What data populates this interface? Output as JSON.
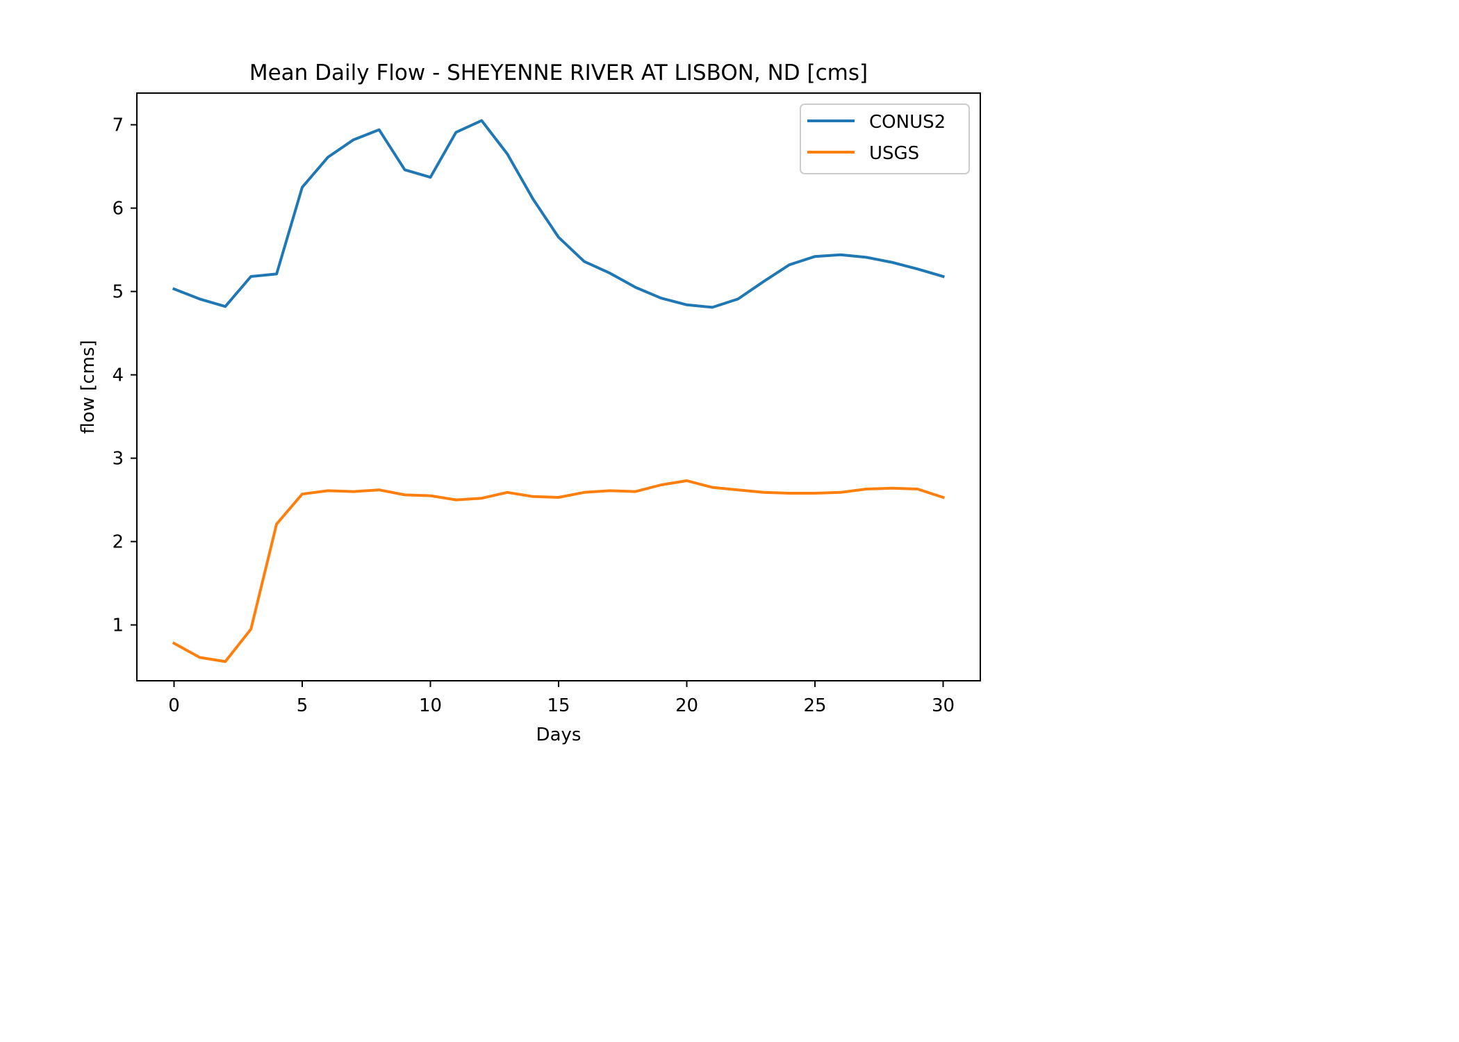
{
  "chart_data": {
    "type": "line",
    "title": "Mean Daily Flow - SHEYENNE RIVER AT LISBON, ND [cms]",
    "xlabel": "Days",
    "ylabel": "flow [cms]",
    "x": [
      0,
      1,
      2,
      3,
      4,
      5,
      6,
      7,
      8,
      9,
      10,
      11,
      12,
      13,
      14,
      15,
      16,
      17,
      18,
      19,
      20,
      21,
      22,
      23,
      24,
      25,
      26,
      27,
      28,
      29,
      30
    ],
    "xlim": [
      -1.45,
      31.45
    ],
    "ylim": [
      0.33,
      7.38
    ],
    "xticks": [
      0,
      5,
      10,
      15,
      20,
      25,
      30
    ],
    "yticks": [
      1,
      2,
      3,
      4,
      5,
      6,
      7
    ],
    "grid": false,
    "legend_position": "top-right",
    "series": [
      {
        "name": "CONUS2",
        "color": "#1f77b4",
        "values": [
          5.03,
          4.91,
          4.82,
          5.18,
          5.21,
          6.25,
          6.61,
          6.82,
          6.94,
          6.46,
          6.37,
          6.91,
          7.05,
          6.65,
          6.11,
          5.65,
          5.36,
          5.22,
          5.05,
          4.92,
          4.84,
          4.81,
          4.91,
          5.12,
          5.32,
          5.42,
          5.44,
          5.41,
          5.35,
          5.27,
          5.18
        ]
      },
      {
        "name": "USGS",
        "color": "#ff7f0e",
        "values": [
          0.78,
          0.61,
          0.56,
          0.95,
          2.21,
          2.57,
          2.61,
          2.6,
          2.62,
          2.56,
          2.55,
          2.5,
          2.52,
          2.59,
          2.54,
          2.53,
          2.59,
          2.61,
          2.6,
          2.68,
          2.73,
          2.65,
          2.62,
          2.59,
          2.58,
          2.58,
          2.59,
          2.63,
          2.64,
          2.63,
          2.53
        ]
      }
    ]
  }
}
